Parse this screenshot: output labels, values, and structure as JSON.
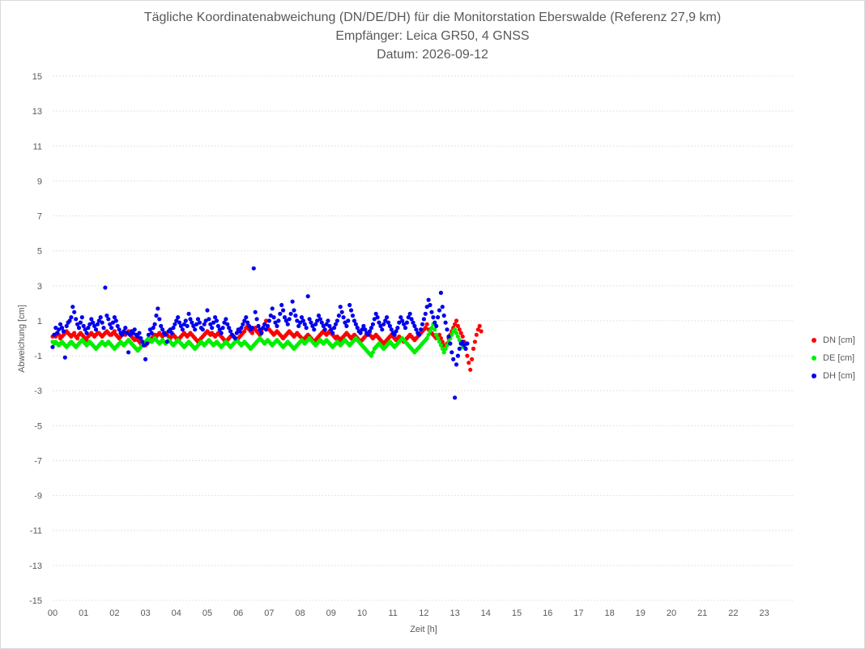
{
  "chart_data": {
    "type": "scatter",
    "title_lines": [
      "Tägliche Koordinatenabweichung (DN/DE/DH) für die Monitorstation Eberswalde (Referenz 27,9 km)",
      "Empfänger: Leica GR50, 4 GNSS",
      "Datum: 2026-09-12"
    ],
    "xlabel": "Zeit [h]",
    "ylabel": "Abweichung [cm]",
    "xlim": [
      0,
      24
    ],
    "ylim": [
      -15,
      15
    ],
    "x_ticks": [
      "00",
      "01",
      "02",
      "03",
      "04",
      "05",
      "06",
      "07",
      "08",
      "09",
      "10",
      "11",
      "12",
      "13",
      "14",
      "15",
      "16",
      "17",
      "18",
      "19",
      "20",
      "21",
      "22",
      "23"
    ],
    "y_ticks": [
      15,
      13,
      11,
      9,
      7,
      5,
      3,
      1,
      -1,
      -3,
      -5,
      -7,
      -9,
      -11,
      -13,
      -15
    ],
    "grid": true,
    "legend_position": "right",
    "sample_interval_h": 0.05,
    "series": [
      {
        "name": "DN [cm]",
        "color": "#ff0000",
        "y": [
          0.1,
          0.2,
          0.1,
          0.3,
          0.2,
          0.0,
          0.1,
          0.2,
          0.3,
          0.4,
          0.3,
          0.2,
          0.1,
          0.2,
          0.3,
          0.1,
          0.0,
          0.2,
          0.3,
          0.2,
          0.1,
          0.0,
          -0.1,
          0.1,
          0.2,
          0.3,
          0.2,
          0.1,
          0.2,
          0.3,
          0.3,
          0.2,
          0.1,
          0.2,
          0.3,
          0.4,
          0.3,
          0.2,
          0.2,
          0.3,
          0.4,
          0.2,
          0.1,
          0.0,
          0.1,
          0.2,
          0.3,
          0.2,
          0.3,
          0.4,
          0.2,
          0.1,
          0.0,
          -0.1,
          0.0,
          -0.1,
          -0.2,
          -0.3,
          -0.2,
          -0.3,
          -0.4,
          -0.3,
          -0.2,
          -0.1,
          0.0,
          0.1,
          0.2,
          0.1,
          0.2,
          0.3,
          0.2,
          0.1,
          0.2,
          0.3,
          0.2,
          0.1,
          0.0,
          0.1,
          0.2,
          0.1,
          0.0,
          -0.1,
          0.0,
          0.1,
          0.2,
          0.3,
          0.2,
          0.1,
          0.2,
          0.3,
          0.2,
          0.1,
          0.0,
          -0.1,
          -0.2,
          -0.1,
          0.0,
          0.1,
          0.2,
          0.3,
          0.4,
          0.3,
          0.2,
          0.3,
          0.2,
          0.1,
          0.2,
          0.3,
          0.2,
          0.1,
          0.0,
          -0.1,
          -0.2,
          -0.1,
          0.0,
          0.1,
          0.2,
          0.1,
          0.0,
          -0.1,
          0.0,
          0.1,
          0.2,
          0.3,
          0.4,
          0.6,
          0.7,
          0.5,
          0.4,
          0.3,
          0.5,
          0.6,
          0.4,
          0.3,
          0.2,
          0.4,
          0.6,
          0.8,
          1.0,
          0.7,
          0.5,
          0.4,
          0.3,
          0.2,
          0.3,
          0.4,
          0.3,
          0.2,
          0.1,
          0.0,
          0.1,
          0.2,
          0.3,
          0.4,
          0.3,
          0.2,
          0.1,
          0.2,
          0.3,
          0.2,
          0.1,
          0.0,
          -0.1,
          0.0,
          0.1,
          0.2,
          0.1,
          0.0,
          -0.1,
          -0.2,
          -0.1,
          0.0,
          0.1,
          0.2,
          0.3,
          0.4,
          0.3,
          0.2,
          0.3,
          0.4,
          0.3,
          0.2,
          0.1,
          0.0,
          0.1,
          0.0,
          -0.1,
          0.0,
          0.1,
          0.2,
          0.3,
          0.2,
          0.1,
          0.0,
          0.1,
          0.2,
          0.1,
          0.0,
          -0.1,
          -0.2,
          -0.1,
          0.0,
          0.1,
          0.2,
          0.3,
          0.2,
          0.1,
          0.0,
          0.1,
          0.2,
          0.1,
          0.0,
          -0.1,
          -0.2,
          -0.3,
          -0.2,
          -0.1,
          0.0,
          0.1,
          0.2,
          0.1,
          0.0,
          -0.1,
          0.0,
          0.1,
          0.0,
          -0.1,
          -0.2,
          -0.1,
          0.0,
          0.1,
          0.2,
          0.1,
          0.0,
          -0.1,
          0.0,
          0.1,
          0.2,
          0.3,
          0.4,
          0.5,
          0.6,
          0.8,
          0.5,
          0.4,
          0.3,
          0.2,
          0.1,
          0.0,
          0.1,
          0.2,
          0.0,
          -0.2,
          -0.4,
          -0.6,
          -0.3,
          0.0,
          0.2,
          0.4,
          0.6,
          0.8,
          1.0,
          0.7,
          0.5,
          0.3,
          0.1,
          -0.2,
          -0.6,
          -1.0,
          -1.4,
          -1.8,
          -1.2,
          -0.6,
          -0.2,
          0.2,
          0.5,
          0.7,
          0.4
        ]
      },
      {
        "name": "DE [cm]",
        "color": "#00ee00",
        "y": [
          -0.2,
          -0.3,
          -0.2,
          -0.3,
          -0.4,
          -0.3,
          -0.2,
          -0.3,
          -0.4,
          -0.5,
          -0.4,
          -0.3,
          -0.2,
          -0.3,
          -0.4,
          -0.5,
          -0.4,
          -0.3,
          -0.2,
          -0.1,
          -0.2,
          -0.3,
          -0.4,
          -0.3,
          -0.2,
          -0.3,
          -0.4,
          -0.5,
          -0.6,
          -0.5,
          -0.4,
          -0.3,
          -0.2,
          -0.3,
          -0.4,
          -0.3,
          -0.2,
          -0.3,
          -0.4,
          -0.5,
          -0.6,
          -0.5,
          -0.4,
          -0.3,
          -0.2,
          -0.3,
          -0.4,
          -0.3,
          -0.2,
          -0.1,
          -0.2,
          -0.3,
          -0.4,
          -0.5,
          -0.6,
          -0.7,
          -0.6,
          -0.5,
          -0.4,
          -0.3,
          -0.2,
          -0.1,
          0.0,
          -0.1,
          -0.2,
          -0.1,
          0.0,
          -0.1,
          -0.2,
          -0.3,
          -0.2,
          -0.1,
          -0.2,
          -0.3,
          -0.2,
          -0.1,
          -0.2,
          -0.3,
          -0.4,
          -0.3,
          -0.2,
          -0.1,
          -0.2,
          -0.3,
          -0.4,
          -0.5,
          -0.4,
          -0.3,
          -0.2,
          -0.3,
          -0.4,
          -0.5,
          -0.6,
          -0.5,
          -0.4,
          -0.3,
          -0.2,
          -0.3,
          -0.4,
          -0.3,
          -0.2,
          -0.1,
          -0.2,
          -0.3,
          -0.4,
          -0.3,
          -0.2,
          -0.3,
          -0.4,
          -0.5,
          -0.4,
          -0.3,
          -0.2,
          -0.3,
          -0.4,
          -0.5,
          -0.4,
          -0.3,
          -0.2,
          -0.1,
          -0.2,
          -0.3,
          -0.4,
          -0.3,
          -0.2,
          -0.3,
          -0.4,
          -0.5,
          -0.6,
          -0.5,
          -0.4,
          -0.3,
          -0.2,
          -0.1,
          0.0,
          -0.1,
          -0.2,
          -0.3,
          -0.2,
          -0.1,
          -0.2,
          -0.3,
          -0.4,
          -0.3,
          -0.2,
          -0.1,
          -0.2,
          -0.3,
          -0.4,
          -0.5,
          -0.4,
          -0.3,
          -0.2,
          -0.3,
          -0.4,
          -0.5,
          -0.6,
          -0.5,
          -0.4,
          -0.3,
          -0.2,
          -0.1,
          -0.2,
          -0.3,
          -0.2,
          -0.1,
          0.0,
          -0.1,
          -0.2,
          -0.3,
          -0.4,
          -0.3,
          -0.2,
          -0.1,
          -0.2,
          -0.3,
          -0.2,
          -0.1,
          -0.2,
          -0.3,
          -0.4,
          -0.5,
          -0.4,
          -0.3,
          -0.2,
          -0.3,
          -0.4,
          -0.3,
          -0.2,
          -0.1,
          -0.2,
          -0.3,
          -0.4,
          -0.3,
          -0.2,
          -0.1,
          0.0,
          -0.1,
          -0.2,
          -0.3,
          -0.4,
          -0.5,
          -0.6,
          -0.7,
          -0.8,
          -0.9,
          -1.0,
          -0.8,
          -0.6,
          -0.5,
          -0.4,
          -0.3,
          -0.4,
          -0.5,
          -0.6,
          -0.5,
          -0.4,
          -0.3,
          -0.2,
          -0.3,
          -0.4,
          -0.5,
          -0.4,
          -0.3,
          -0.2,
          -0.1,
          0.0,
          -0.1,
          -0.2,
          -0.3,
          -0.4,
          -0.5,
          -0.6,
          -0.7,
          -0.8,
          -0.7,
          -0.6,
          -0.5,
          -0.4,
          -0.3,
          -0.2,
          -0.1,
          0.0,
          0.2,
          0.4,
          0.6,
          0.8,
          0.5,
          0.2,
          0.0,
          -0.2,
          -0.4,
          -0.6,
          -0.8,
          -0.6,
          -0.4,
          -0.2,
          0.0,
          0.2,
          0.4,
          0.5,
          0.3,
          0.1,
          -0.1,
          -0.3,
          -0.5,
          -0.4
        ]
      },
      {
        "name": "DH [cm]",
        "color": "#0000ee",
        "y": [
          -0.5,
          0.2,
          0.6,
          0.3,
          0.5,
          0.8,
          0.6,
          0.4,
          -1.1,
          0.7,
          0.9,
          1.0,
          1.2,
          1.8,
          1.5,
          1.1,
          0.8,
          0.6,
          0.9,
          1.2,
          0.7,
          0.5,
          0.3,
          0.6,
          0.8,
          1.1,
          0.9,
          0.7,
          0.5,
          0.8,
          1.0,
          1.2,
          0.9,
          0.6,
          2.9,
          1.3,
          1.1,
          0.8,
          0.6,
          0.9,
          1.2,
          1.0,
          0.7,
          0.5,
          0.3,
          0.2,
          0.4,
          0.6,
          0.3,
          -0.8,
          0.2,
          0.4,
          0.3,
          0.5,
          0.2,
          0.1,
          0.3,
          0.0,
          -0.2,
          -0.4,
          -1.2,
          -0.3,
          0.2,
          0.5,
          0.3,
          0.6,
          0.8,
          1.3,
          1.7,
          1.1,
          0.7,
          0.5,
          0.3,
          0.2,
          -0.2,
          0.4,
          0.5,
          0.3,
          0.6,
          0.8,
          1.0,
          1.2,
          0.9,
          0.7,
          0.5,
          0.8,
          1.0,
          0.7,
          1.4,
          1.1,
          0.9,
          0.7,
          0.5,
          0.8,
          1.1,
          0.9,
          0.6,
          0.5,
          0.8,
          1.0,
          1.6,
          1.1,
          0.8,
          0.6,
          0.9,
          1.2,
          1.0,
          0.7,
          0.5,
          0.3,
          0.6,
          0.9,
          1.1,
          0.8,
          0.6,
          0.4,
          0.2,
          0.1,
          0.0,
          0.3,
          0.5,
          0.4,
          0.6,
          0.8,
          1.0,
          1.2,
          0.9,
          0.7,
          0.5,
          0.6,
          4.0,
          1.5,
          1.1,
          0.7,
          0.5,
          0.3,
          0.6,
          0.8,
          0.5,
          0.7,
          1.0,
          1.3,
          1.7,
          1.2,
          0.9,
          0.7,
          1.0,
          1.4,
          1.9,
          1.6,
          1.2,
          1.0,
          0.8,
          1.1,
          1.4,
          2.1,
          1.6,
          1.3,
          1.0,
          0.7,
          0.9,
          1.2,
          1.0,
          0.8,
          0.6,
          2.4,
          1.1,
          0.9,
          0.7,
          0.5,
          0.8,
          1.0,
          1.3,
          1.1,
          0.9,
          0.7,
          0.5,
          0.8,
          1.0,
          0.7,
          0.5,
          0.3,
          0.6,
          0.8,
          1.0,
          1.3,
          1.8,
          1.5,
          1.2,
          0.9,
          0.7,
          1.0,
          1.9,
          1.6,
          1.3,
          1.0,
          0.8,
          0.6,
          0.4,
          0.3,
          0.5,
          0.7,
          0.5,
          0.3,
          0.2,
          0.4,
          0.6,
          0.8,
          1.1,
          1.4,
          1.2,
          0.9,
          0.7,
          0.5,
          0.8,
          1.0,
          1.2,
          0.9,
          0.7,
          0.5,
          0.3,
          0.2,
          0.4,
          0.6,
          0.9,
          1.2,
          1.0,
          0.8,
          0.6,
          0.9,
          1.2,
          1.4,
          1.1,
          0.9,
          0.7,
          0.5,
          0.3,
          0.2,
          0.5,
          0.8,
          1.1,
          1.4,
          1.8,
          2.2,
          1.9,
          1.5,
          1.2,
          0.9,
          0.7,
          1.2,
          1.6,
          2.6,
          1.8,
          1.3,
          0.9,
          0.5,
          0.1,
          -0.3,
          -0.8,
          -1.2,
          -3.4,
          -1.5,
          -1.0,
          -0.6,
          -0.3,
          -0.2,
          -0.4,
          -0.6,
          -0.3
        ]
      }
    ]
  }
}
